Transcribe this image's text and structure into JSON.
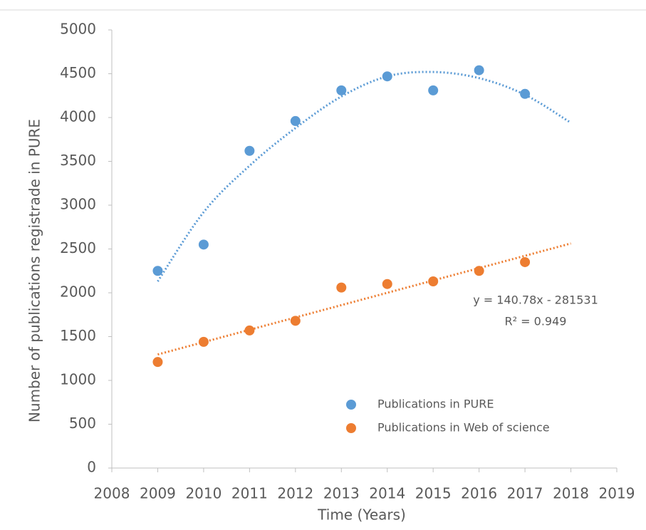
{
  "chart_data": {
    "type": "scatter",
    "xlabel": "Time (Years)",
    "ylabel": "Number of publications registrade in PURE",
    "xlim": [
      2008,
      2019
    ],
    "xticks": [
      2008,
      2009,
      2010,
      2011,
      2012,
      2013,
      2014,
      2015,
      2016,
      2017,
      2018,
      2019
    ],
    "ylim": [
      0,
      5000
    ],
    "yticks": [
      0,
      500,
      1000,
      1500,
      2000,
      2500,
      3000,
      3500,
      4000,
      4500,
      5000
    ],
    "grid": false,
    "legend": "lower right",
    "series": [
      {
        "name": "Publications in PURE",
        "color": "#5b9bd5",
        "x": [
          2009,
          2010,
          2011,
          2012,
          2013,
          2014,
          2015,
          2016,
          2017
        ],
        "values": [
          2250,
          2550,
          3620,
          3960,
          4310,
          4470,
          4310,
          4540,
          4270
        ],
        "trendline": {
          "x": [
            2009,
            2010,
            2011,
            2012,
            2013,
            2014,
            2015,
            2016,
            2017,
            2018
          ],
          "values": [
            2130,
            2920,
            3450,
            3880,
            4240,
            4470,
            4520,
            4450,
            4260,
            3940
          ]
        }
      },
      {
        "name": "Publications in Web of science",
        "color": "#ed7d31",
        "x": [
          2009,
          2010,
          2011,
          2012,
          2013,
          2014,
          2015,
          2016,
          2017
        ],
        "values": [
          1210,
          1440,
          1570,
          1680,
          2060,
          2100,
          2130,
          2250,
          2350
        ],
        "trendline": {
          "x": [
            2009,
            2018
          ],
          "values": [
            1296,
            2563
          ],
          "equation": "y = 140.78x - 281531",
          "r_squared": "R² = 0.949"
        }
      }
    ]
  }
}
